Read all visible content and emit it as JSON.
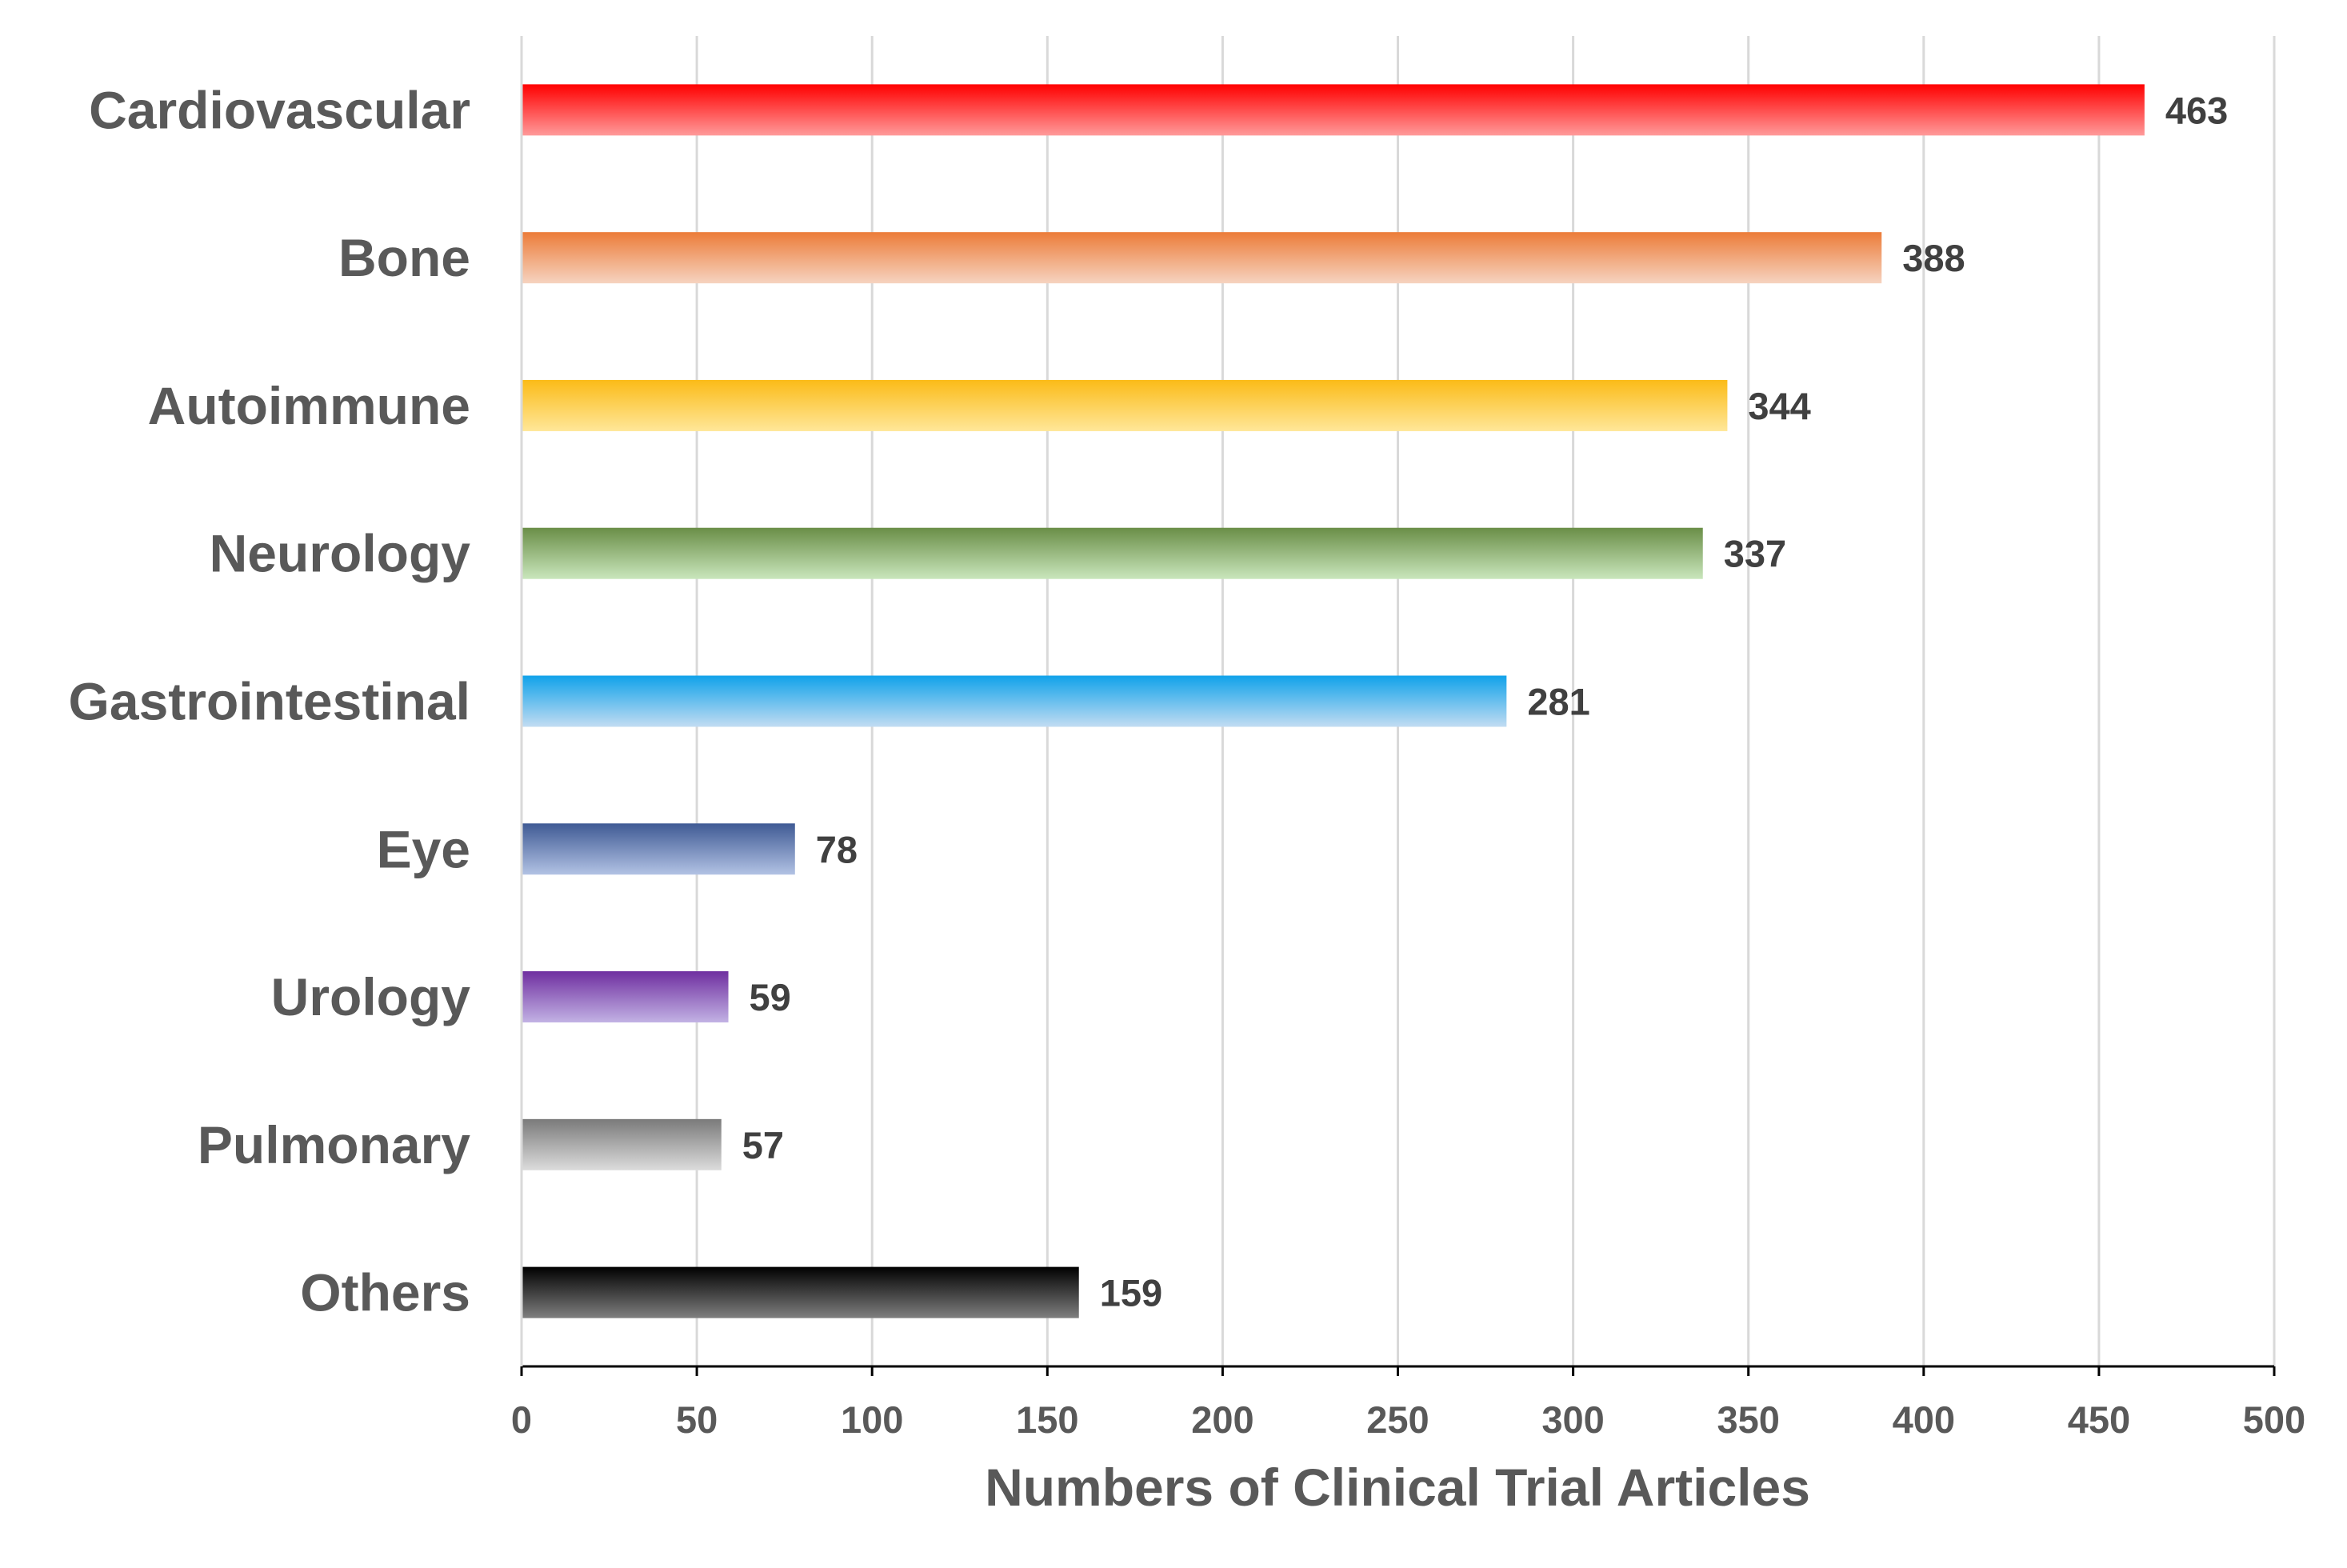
{
  "chart_data": {
    "type": "bar",
    "orientation": "horizontal",
    "categories": [
      "Cardiovascular",
      "Bone",
      "Autoimmune",
      "Neurology",
      "Gastrointestinal",
      "Eye",
      "Urology",
      "Pulmonary",
      "Others"
    ],
    "values": [
      463,
      388,
      344,
      337,
      281,
      78,
      59,
      57,
      159
    ],
    "data_labels": [
      "463",
      "388",
      "344",
      "337",
      "281",
      "78",
      "59",
      "57",
      "159"
    ],
    "xlabel": "Numbers of Clinical Trial Articles",
    "ylabel": "",
    "xlim": [
      0,
      500
    ],
    "x_ticks": [
      0,
      50,
      100,
      150,
      200,
      250,
      300,
      350,
      400,
      450,
      500
    ],
    "x_tick_labels": [
      "0",
      "50",
      "100",
      "150",
      "200",
      "250",
      "300",
      "350",
      "400",
      "450",
      "500"
    ],
    "grid": "vertical",
    "legend": "none",
    "bar_colors": [
      {
        "top": "#ff0000",
        "bottom": "#ff9a9a"
      },
      {
        "top": "#ec7c39",
        "bottom": "#f6d3c0"
      },
      {
        "top": "#fbbb18",
        "bottom": "#ffe799"
      },
      {
        "top": "#6a8e47",
        "bottom": "#c9e6bc"
      },
      {
        "top": "#10a2ea",
        "bottom": "#c2dcf2"
      },
      {
        "top": "#3f5a94",
        "bottom": "#b2c2e4"
      },
      {
        "top": "#6f2fa0",
        "bottom": "#c2b2e4"
      },
      {
        "top": "#7a7a7a",
        "bottom": "#dcdcdc"
      },
      {
        "top": "#000000",
        "bottom": "#7f7f7f"
      }
    ]
  }
}
